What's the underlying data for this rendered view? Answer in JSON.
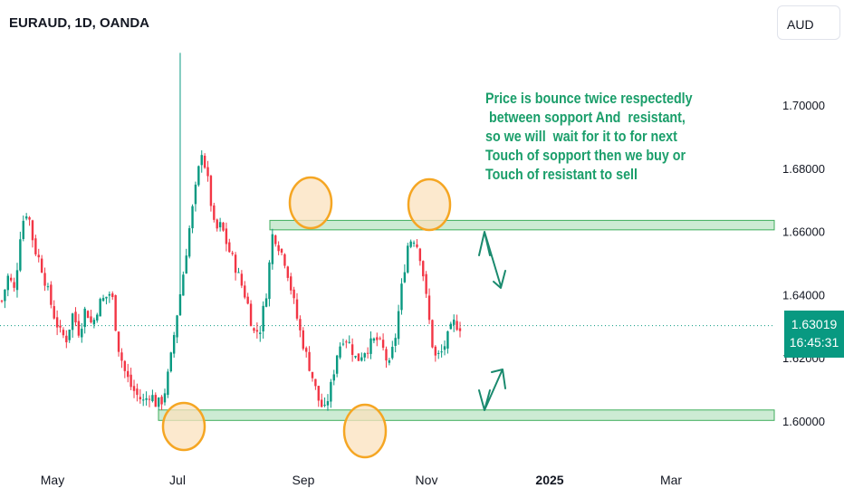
{
  "header": {
    "symbol": "EURAUD, 1D, OANDA",
    "currency": "AUD"
  },
  "price_tag": {
    "price": "1.63019",
    "countdown": "16:45:31"
  },
  "annotation_text": "Price is bounce twice respectedly\n between sopport And  resistant,\nso we will  wait for it to for next\nTouch of sopport then we buy or\nTouch of resistant to sell",
  "colors": {
    "up": "#089981",
    "down": "#f23645",
    "zone_fill": "#cdebd4",
    "zone_stroke": "#3fae5c",
    "circle_stroke": "#f5a623",
    "circle_fill": "#fbe1bd",
    "arrow": "#1a8a6e",
    "note": "#1a9e6a"
  },
  "chart_data": {
    "type": "candlestick",
    "y_axis": {
      "min": 1.59,
      "max": 1.716,
      "ticks": [
        "1.60000",
        "1.62000",
        "1.64000",
        "1.66000",
        "1.68000",
        "1.70000"
      ],
      "tick_values": [
        1.6,
        1.62,
        1.64,
        1.66,
        1.68,
        1.7
      ]
    },
    "x_axis": {
      "labels": [
        "May",
        "Jul",
        "Sep",
        "Nov",
        "2025",
        "Mar"
      ]
    },
    "current_price": 1.63019,
    "support_zone": [
      1.6002,
      1.6035
    ],
    "resistance_zone": [
      1.6605,
      1.6635
    ],
    "close_path": [
      1.638,
      1.646,
      1.641,
      1.662,
      1.667,
      1.655,
      1.65,
      1.642,
      1.634,
      1.628,
      1.626,
      1.634,
      1.628,
      1.636,
      1.63,
      1.637,
      1.639,
      1.641,
      1.624,
      1.616,
      1.611,
      1.608,
      1.606,
      1.609,
      1.605,
      1.607,
      1.617,
      1.632,
      1.645,
      1.66,
      1.673,
      1.686,
      1.675,
      1.66,
      1.662,
      1.655,
      1.65,
      1.644,
      1.638,
      1.628,
      1.629,
      1.641,
      1.66,
      1.655,
      1.65,
      1.64,
      1.63,
      1.622,
      1.615,
      1.607,
      1.603,
      1.611,
      1.622,
      1.627,
      1.624,
      1.619,
      1.622,
      1.624,
      1.626,
      1.623,
      1.617,
      1.627,
      1.643,
      1.657,
      1.658,
      1.651,
      1.635,
      1.62,
      1.621,
      1.626,
      1.631,
      1.63
    ],
    "candle_count": 150
  }
}
